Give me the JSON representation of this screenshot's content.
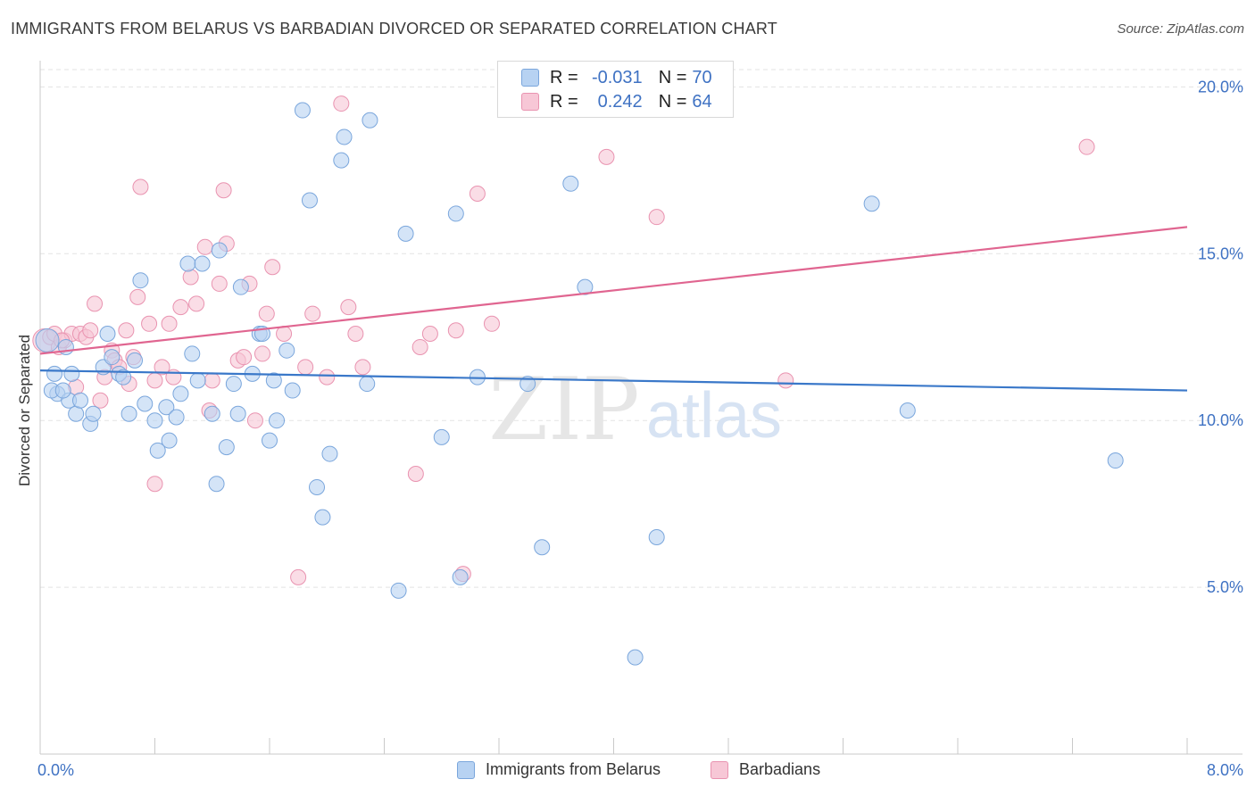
{
  "header": {
    "title": "IMMIGRANTS FROM BELARUS VS BARBADIAN DIVORCED OR SEPARATED CORRELATION CHART",
    "source": "Source: ZipAtlas.com"
  },
  "watermark": {
    "zip": "ZIP",
    "atlas": "atlas"
  },
  "legend_top": {
    "rows": [
      {
        "r_label": "R =",
        "r_value": "-0.031",
        "n_label": "N =",
        "n_value": "70"
      },
      {
        "r_label": "R =",
        "r_value": "0.242",
        "n_label": "N =",
        "n_value": "64"
      }
    ]
  },
  "legend_bottom": {
    "items": [
      {
        "label": "Immigrants from Belarus"
      },
      {
        "label": "Barbadians"
      }
    ]
  },
  "colors": {
    "blue_fill": "#b7d2f2",
    "blue_stroke": "#7aa6dc",
    "blue_line": "#3a78c9",
    "pink_fill": "#f7c7d6",
    "pink_stroke": "#e993b0",
    "pink_line": "#e06590",
    "tick_text": "#3f72c3",
    "grid": "#e3e3e3"
  },
  "chart_data": {
    "type": "scatter",
    "title": "IMMIGRANTS FROM BELARUS VS BARBADIAN DIVORCED OR SEPARATED CORRELATION CHART",
    "xlabel": "",
    "ylabel": "Divorced or Separated",
    "xlim": [
      0,
      8
    ],
    "ylim": [
      0,
      21
    ],
    "x_tick_labels": [
      "0.0%",
      "8.0%"
    ],
    "y_ticks": [
      5,
      10,
      15,
      20
    ],
    "y_tick_labels": [
      "5.0%",
      "10.0%",
      "15.0%",
      "20.0%"
    ],
    "grid": true,
    "legend_position": "top-center",
    "series": [
      {
        "name": "Immigrants from Belarus",
        "color": "#b7d2f2",
        "trend": {
          "x": [
            0,
            8
          ],
          "y": [
            11.5,
            10.9
          ]
        },
        "points": [
          [
            0.05,
            12.4
          ],
          [
            0.1,
            11.4
          ],
          [
            0.12,
            10.8
          ],
          [
            0.18,
            12.2
          ],
          [
            0.2,
            10.6
          ],
          [
            0.22,
            11.4
          ],
          [
            0.25,
            10.2
          ],
          [
            0.28,
            10.6
          ],
          [
            0.35,
            9.9
          ],
          [
            0.37,
            10.2
          ],
          [
            0.44,
            11.6
          ],
          [
            0.47,
            12.6
          ],
          [
            0.5,
            11.9
          ],
          [
            0.55,
            11.4
          ],
          [
            0.58,
            11.3
          ],
          [
            0.62,
            10.2
          ],
          [
            0.66,
            11.8
          ],
          [
            0.7,
            14.2
          ],
          [
            0.73,
            10.5
          ],
          [
            0.8,
            10.0
          ],
          [
            0.82,
            9.1
          ],
          [
            0.88,
            10.4
          ],
          [
            0.9,
            9.4
          ],
          [
            0.95,
            10.1
          ],
          [
            0.98,
            10.8
          ],
          [
            1.03,
            14.7
          ],
          [
            1.06,
            12.0
          ],
          [
            1.1,
            11.2
          ],
          [
            1.13,
            14.7
          ],
          [
            1.2,
            10.2
          ],
          [
            1.23,
            8.1
          ],
          [
            1.25,
            15.1
          ],
          [
            1.3,
            9.2
          ],
          [
            1.35,
            11.1
          ],
          [
            1.38,
            10.2
          ],
          [
            1.4,
            14.0
          ],
          [
            1.48,
            11.4
          ],
          [
            1.53,
            12.6
          ],
          [
            1.55,
            12.6
          ],
          [
            1.6,
            9.4
          ],
          [
            1.63,
            11.2
          ],
          [
            1.65,
            10.0
          ],
          [
            1.72,
            12.1
          ],
          [
            1.76,
            10.9
          ],
          [
            1.83,
            19.3
          ],
          [
            1.88,
            16.6
          ],
          [
            1.93,
            8.0
          ],
          [
            1.97,
            7.1
          ],
          [
            2.02,
            9.0
          ],
          [
            2.1,
            17.8
          ],
          [
            2.12,
            18.5
          ],
          [
            2.28,
            11.1
          ],
          [
            2.3,
            19.0
          ],
          [
            2.5,
            4.9
          ],
          [
            2.55,
            15.6
          ],
          [
            2.8,
            9.5
          ],
          [
            2.9,
            16.2
          ],
          [
            2.93,
            5.3
          ],
          [
            3.05,
            11.3
          ],
          [
            3.4,
            11.1
          ],
          [
            3.5,
            6.2
          ],
          [
            3.7,
            17.1
          ],
          [
            3.8,
            14.0
          ],
          [
            4.15,
            2.9
          ],
          [
            4.3,
            6.5
          ],
          [
            5.8,
            16.5
          ],
          [
            6.05,
            10.3
          ],
          [
            7.5,
            8.8
          ],
          [
            0.08,
            10.9
          ],
          [
            0.16,
            10.9
          ]
        ]
      },
      {
        "name": "Barbadians",
        "color": "#f7c7d6",
        "trend": {
          "x": [
            0,
            8
          ],
          "y": [
            12.0,
            15.8
          ]
        },
        "points": [
          [
            0.03,
            12.4
          ],
          [
            0.07,
            12.5
          ],
          [
            0.1,
            12.6
          ],
          [
            0.13,
            12.2
          ],
          [
            0.17,
            12.4
          ],
          [
            0.22,
            12.6
          ],
          [
            0.25,
            11.0
          ],
          [
            0.28,
            12.6
          ],
          [
            0.32,
            12.5
          ],
          [
            0.38,
            13.5
          ],
          [
            0.42,
            10.6
          ],
          [
            0.45,
            11.3
          ],
          [
            0.5,
            12.1
          ],
          [
            0.52,
            11.8
          ],
          [
            0.55,
            11.6
          ],
          [
            0.6,
            12.7
          ],
          [
            0.62,
            11.1
          ],
          [
            0.65,
            11.9
          ],
          [
            0.68,
            13.7
          ],
          [
            0.7,
            17.0
          ],
          [
            0.76,
            12.9
          ],
          [
            0.8,
            11.2
          ],
          [
            0.8,
            8.1
          ],
          [
            0.85,
            11.6
          ],
          [
            0.9,
            12.9
          ],
          [
            0.93,
            11.3
          ],
          [
            0.98,
            13.4
          ],
          [
            1.05,
            14.3
          ],
          [
            1.09,
            13.5
          ],
          [
            1.15,
            15.2
          ],
          [
            1.18,
            10.3
          ],
          [
            1.2,
            11.2
          ],
          [
            1.25,
            14.1
          ],
          [
            1.28,
            16.9
          ],
          [
            1.3,
            15.3
          ],
          [
            1.38,
            11.8
          ],
          [
            1.42,
            11.9
          ],
          [
            1.46,
            14.1
          ],
          [
            1.5,
            10.0
          ],
          [
            1.55,
            12.0
          ],
          [
            1.58,
            13.2
          ],
          [
            1.62,
            14.6
          ],
          [
            1.7,
            12.6
          ],
          [
            1.8,
            5.3
          ],
          [
            1.85,
            11.6
          ],
          [
            1.9,
            13.2
          ],
          [
            2.0,
            11.3
          ],
          [
            2.1,
            19.5
          ],
          [
            2.15,
            13.4
          ],
          [
            2.2,
            12.6
          ],
          [
            2.25,
            11.6
          ],
          [
            2.62,
            8.4
          ],
          [
            2.65,
            12.2
          ],
          [
            2.72,
            12.6
          ],
          [
            2.9,
            12.7
          ],
          [
            2.95,
            5.4
          ],
          [
            3.05,
            16.8
          ],
          [
            3.15,
            12.9
          ],
          [
            3.95,
            17.9
          ],
          [
            4.3,
            16.1
          ],
          [
            5.2,
            11.2
          ],
          [
            7.3,
            18.2
          ],
          [
            0.15,
            12.4
          ],
          [
            0.35,
            12.7
          ]
        ]
      }
    ]
  }
}
